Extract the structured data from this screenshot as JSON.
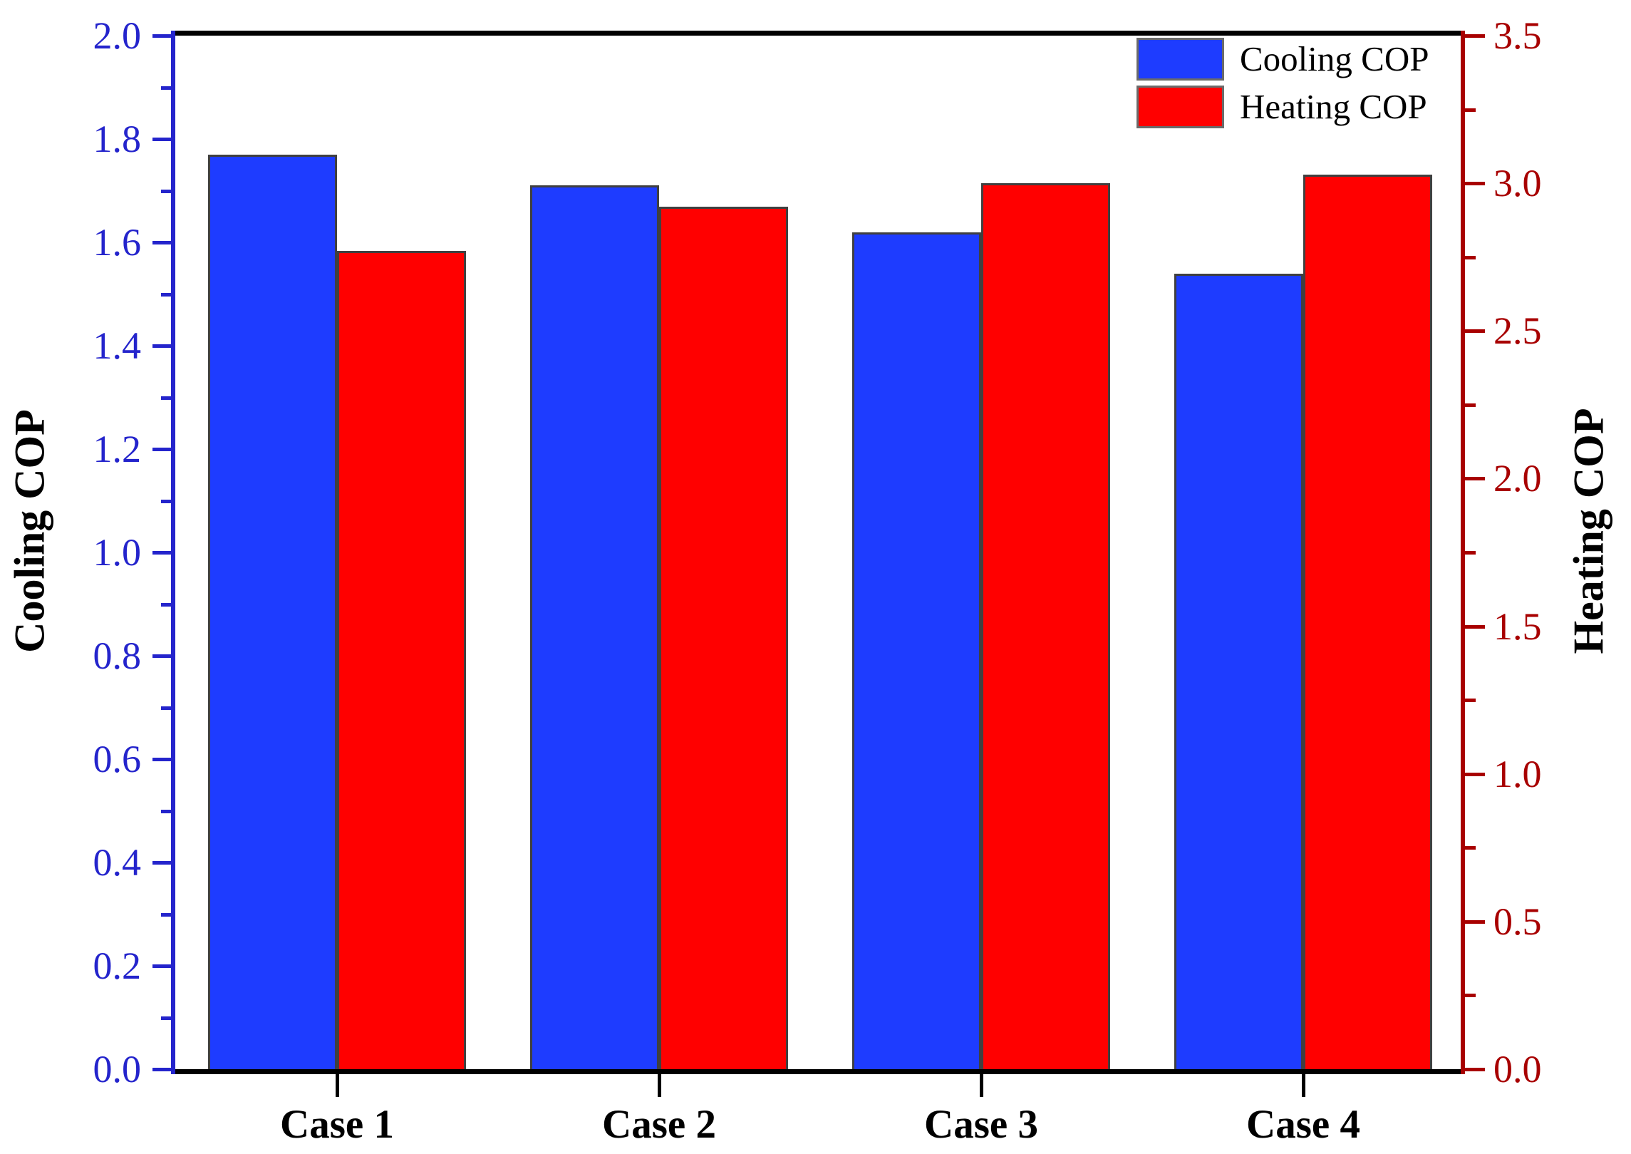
{
  "chart_data": {
    "type": "bar",
    "categories": [
      "Case 1",
      "Case 2",
      "Case 3",
      "Case 4"
    ],
    "series": [
      {
        "name": "Cooling COP",
        "axis": "left",
        "color": "#1E3CFF",
        "values": [
          1.77,
          1.71,
          1.62,
          1.54
        ]
      },
      {
        "name": "Heating COP",
        "axis": "right",
        "color": "#FF0000",
        "values": [
          2.77,
          2.92,
          3.0,
          3.03
        ]
      }
    ],
    "left_axis": {
      "label": "Cooling COP",
      "min": 0.0,
      "max": 2.0,
      "major_step": 0.2,
      "minor_step": 0.1,
      "color": "#2424CC",
      "tick_labels": [
        "0.0",
        "0.2",
        "0.4",
        "0.6",
        "0.8",
        "1.0",
        "1.2",
        "1.4",
        "1.6",
        "1.8",
        "2.0"
      ]
    },
    "right_axis": {
      "label": "Heating COP",
      "min": 0.0,
      "max": 3.5,
      "major_step": 0.5,
      "minor_step": 0.25,
      "color": "#A80000",
      "tick_labels": [
        "0.0",
        "0.5",
        "1.0",
        "1.5",
        "2.0",
        "2.5",
        "3.0",
        "3.5"
      ]
    },
    "legend": {
      "position": "top-right",
      "entries": [
        "Cooling COP",
        "Heating COP"
      ]
    },
    "grid": false,
    "frame_color": "#000000",
    "bar_border_color": "#404040",
    "background": "#FFFFFF"
  }
}
